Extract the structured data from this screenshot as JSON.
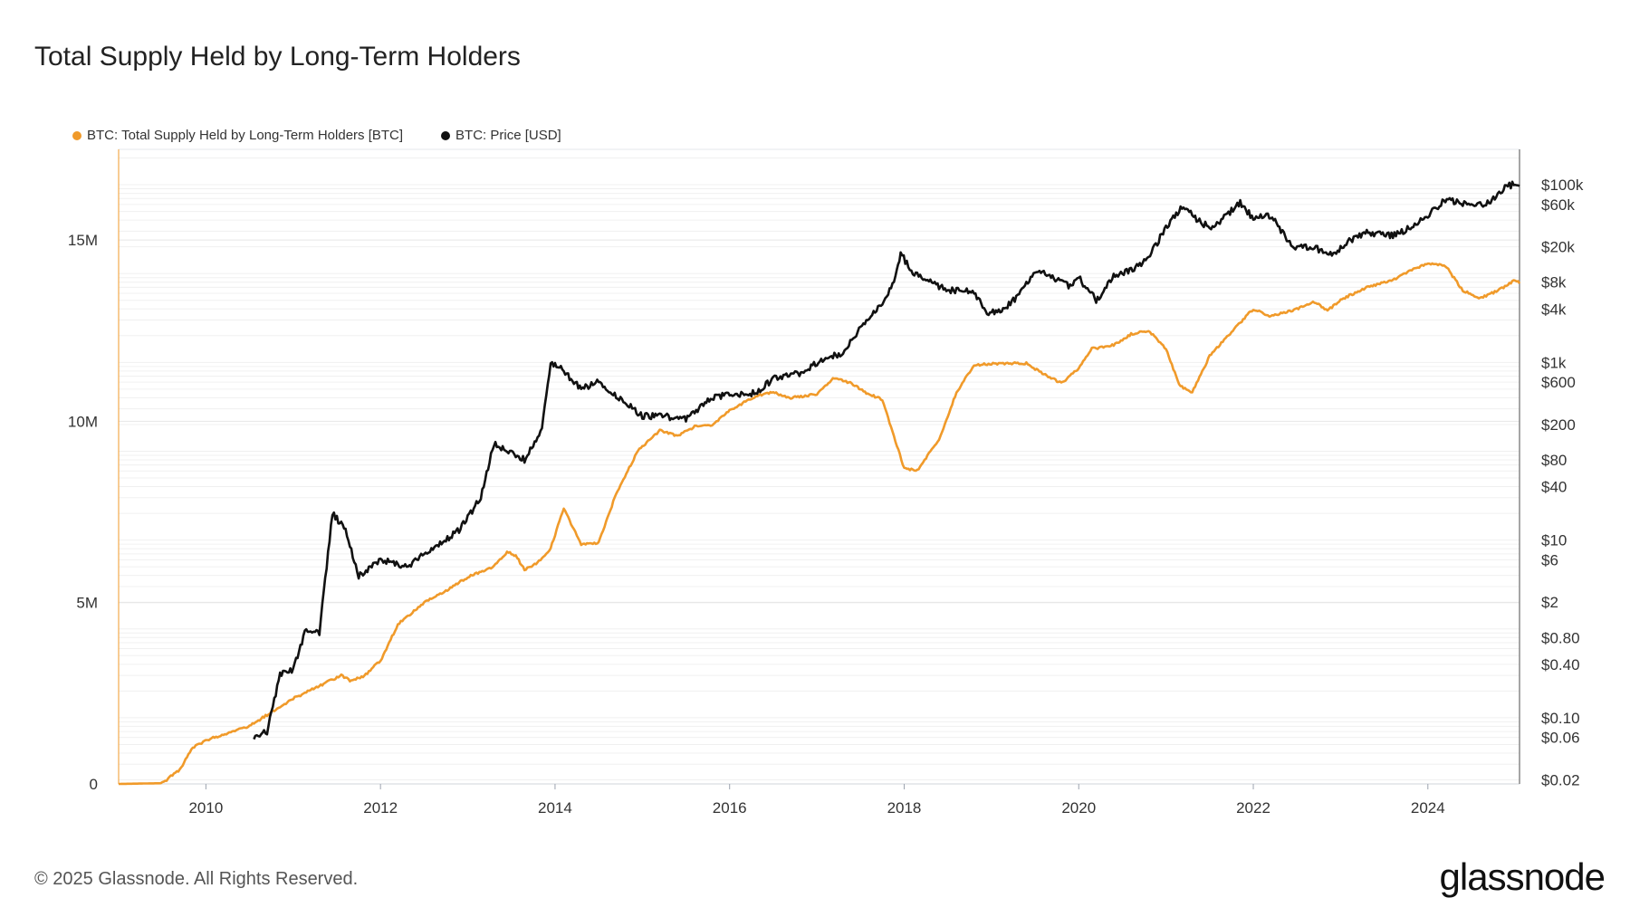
{
  "title": "Total Supply Held by Long-Term Holders",
  "legend": [
    {
      "label": "BTC: Total Supply Held by Long-Term Holders [BTC]",
      "color": "#f09a2a"
    },
    {
      "label": "BTC: Price [USD]",
      "color": "#111111"
    }
  ],
  "footer": "© 2025 Glassnode. All Rights Reserved.",
  "logo": "glassnode",
  "chart_data": {
    "type": "line",
    "x_range": [
      2009.0,
      2025.05
    ],
    "x_ticks": [
      "2010",
      "2012",
      "2014",
      "2016",
      "2018",
      "2020",
      "2022",
      "2024"
    ],
    "y_left": {
      "range": [
        0,
        17500000
      ],
      "ticks": [
        {
          "value": 0,
          "label": "0"
        },
        {
          "value": 5000000,
          "label": "5M"
        },
        {
          "value": 10000000,
          "label": "10M"
        },
        {
          "value": 15000000,
          "label": "15M"
        }
      ]
    },
    "y_right": {
      "scale": "log",
      "range": [
        0.018,
        250000
      ],
      "ticks": [
        {
          "value": 100000,
          "label": "$100k"
        },
        {
          "value": 60000,
          "label": "$60k"
        },
        {
          "value": 20000,
          "label": "$20k"
        },
        {
          "value": 8000,
          "label": "$8k"
        },
        {
          "value": 4000,
          "label": "$4k"
        },
        {
          "value": 1000,
          "label": "$1k"
        },
        {
          "value": 600,
          "label": "$600"
        },
        {
          "value": 200,
          "label": "$200"
        },
        {
          "value": 80,
          "label": "$80"
        },
        {
          "value": 40,
          "label": "$40"
        },
        {
          "value": 10,
          "label": "$10"
        },
        {
          "value": 6,
          "label": "$6"
        },
        {
          "value": 2,
          "label": "$2"
        },
        {
          "value": 0.8,
          "label": "$0.80"
        },
        {
          "value": 0.4,
          "label": "$0.40"
        },
        {
          "value": 0.1,
          "label": "$0.10"
        },
        {
          "value": 0.06,
          "label": "$0.06"
        },
        {
          "value": 0.02,
          "label": "$0.02"
        }
      ]
    },
    "series": [
      {
        "name": "BTC: Total Supply Held by Long-Term Holders [BTC]",
        "color": "#f09a2a",
        "axis": "left",
        "points": [
          [
            2009.0,
            0
          ],
          [
            2009.5,
            20000
          ],
          [
            2009.7,
            400000
          ],
          [
            2009.85,
            1000000
          ],
          [
            2010.0,
            1200000
          ],
          [
            2010.3,
            1450000
          ],
          [
            2010.5,
            1600000
          ],
          [
            2010.8,
            2050000
          ],
          [
            2011.0,
            2350000
          ],
          [
            2011.3,
            2700000
          ],
          [
            2011.55,
            3000000
          ],
          [
            2011.65,
            2850000
          ],
          [
            2011.8,
            2950000
          ],
          [
            2012.0,
            3400000
          ],
          [
            2012.2,
            4400000
          ],
          [
            2012.5,
            5000000
          ],
          [
            2012.8,
            5400000
          ],
          [
            2013.0,
            5700000
          ],
          [
            2013.3,
            6000000
          ],
          [
            2013.45,
            6400000
          ],
          [
            2013.55,
            6300000
          ],
          [
            2013.65,
            5900000
          ],
          [
            2013.8,
            6100000
          ],
          [
            2013.95,
            6500000
          ],
          [
            2014.1,
            7600000
          ],
          [
            2014.3,
            6600000
          ],
          [
            2014.5,
            6650000
          ],
          [
            2014.7,
            8000000
          ],
          [
            2014.95,
            9200000
          ],
          [
            2015.2,
            9750000
          ],
          [
            2015.4,
            9600000
          ],
          [
            2015.6,
            9850000
          ],
          [
            2015.8,
            9900000
          ],
          [
            2016.0,
            10300000
          ],
          [
            2016.3,
            10700000
          ],
          [
            2016.5,
            10800000
          ],
          [
            2016.7,
            10650000
          ],
          [
            2017.0,
            10750000
          ],
          [
            2017.2,
            11200000
          ],
          [
            2017.4,
            11050000
          ],
          [
            2017.55,
            10800000
          ],
          [
            2017.75,
            10600000
          ],
          [
            2018.0,
            8700000
          ],
          [
            2018.15,
            8650000
          ],
          [
            2018.4,
            9500000
          ],
          [
            2018.6,
            10800000
          ],
          [
            2018.8,
            11550000
          ],
          [
            2019.1,
            11600000
          ],
          [
            2019.4,
            11600000
          ],
          [
            2019.6,
            11300000
          ],
          [
            2019.8,
            11050000
          ],
          [
            2020.0,
            11450000
          ],
          [
            2020.15,
            12000000
          ],
          [
            2020.4,
            12100000
          ],
          [
            2020.6,
            12400000
          ],
          [
            2020.8,
            12500000
          ],
          [
            2021.0,
            12000000
          ],
          [
            2021.15,
            11000000
          ],
          [
            2021.3,
            10800000
          ],
          [
            2021.5,
            11800000
          ],
          [
            2021.8,
            12600000
          ],
          [
            2022.0,
            13100000
          ],
          [
            2022.2,
            12900000
          ],
          [
            2022.5,
            13100000
          ],
          [
            2022.7,
            13300000
          ],
          [
            2022.85,
            13050000
          ],
          [
            2023.0,
            13350000
          ],
          [
            2023.3,
            13700000
          ],
          [
            2023.6,
            13900000
          ],
          [
            2023.8,
            14150000
          ],
          [
            2024.0,
            14350000
          ],
          [
            2024.2,
            14300000
          ],
          [
            2024.4,
            13600000
          ],
          [
            2024.6,
            13400000
          ],
          [
            2024.8,
            13600000
          ],
          [
            2025.0,
            13900000
          ],
          [
            2025.05,
            13800000
          ]
        ]
      },
      {
        "name": "BTC: Price [USD]",
        "color": "#111111",
        "axis": "right",
        "points": [
          [
            2010.55,
            0.06
          ],
          [
            2010.7,
            0.07
          ],
          [
            2010.85,
            0.3
          ],
          [
            2011.0,
            0.35
          ],
          [
            2011.15,
            1.0
          ],
          [
            2011.3,
            0.9
          ],
          [
            2011.45,
            20
          ],
          [
            2011.6,
            13
          ],
          [
            2011.75,
            4
          ],
          [
            2012.0,
            6
          ],
          [
            2012.3,
            5
          ],
          [
            2012.6,
            8
          ],
          [
            2012.9,
            13
          ],
          [
            2013.15,
            30
          ],
          [
            2013.3,
            120
          ],
          [
            2013.45,
            100
          ],
          [
            2013.65,
            80
          ],
          [
            2013.85,
            180
          ],
          [
            2013.95,
            1000
          ],
          [
            2014.1,
            800
          ],
          [
            2014.3,
            500
          ],
          [
            2014.5,
            600
          ],
          [
            2014.8,
            350
          ],
          [
            2015.0,
            250
          ],
          [
            2015.2,
            250
          ],
          [
            2015.5,
            230
          ],
          [
            2015.8,
            400
          ],
          [
            2016.0,
            430
          ],
          [
            2016.3,
            450
          ],
          [
            2016.5,
            650
          ],
          [
            2016.8,
            750
          ],
          [
            2017.0,
            1000
          ],
          [
            2017.3,
            1300
          ],
          [
            2017.5,
            2500
          ],
          [
            2017.75,
            4500
          ],
          [
            2017.9,
            9000
          ],
          [
            2017.96,
            17000
          ],
          [
            2018.1,
            10000
          ],
          [
            2018.3,
            8000
          ],
          [
            2018.5,
            6500
          ],
          [
            2018.8,
            6300
          ],
          [
            2018.95,
            3600
          ],
          [
            2019.1,
            3700
          ],
          [
            2019.3,
            5500
          ],
          [
            2019.5,
            11000
          ],
          [
            2019.7,
            9000
          ],
          [
            2019.9,
            7200
          ],
          [
            2020.0,
            9000
          ],
          [
            2020.2,
            5000
          ],
          [
            2020.4,
            9200
          ],
          [
            2020.6,
            11000
          ],
          [
            2020.8,
            15000
          ],
          [
            2021.0,
            33000
          ],
          [
            2021.2,
            58000
          ],
          [
            2021.4,
            37000
          ],
          [
            2021.55,
            33000
          ],
          [
            2021.85,
            63000
          ],
          [
            2022.0,
            42000
          ],
          [
            2022.2,
            45000
          ],
          [
            2022.45,
            20000
          ],
          [
            2022.7,
            19500
          ],
          [
            2022.9,
            16500
          ],
          [
            2023.1,
            23000
          ],
          [
            2023.3,
            29000
          ],
          [
            2023.6,
            26500
          ],
          [
            2023.85,
            35000
          ],
          [
            2024.0,
            45000
          ],
          [
            2024.2,
            68000
          ],
          [
            2024.5,
            58000
          ],
          [
            2024.7,
            63000
          ],
          [
            2024.9,
            95000
          ],
          [
            2025.0,
            102000
          ],
          [
            2025.05,
            97000
          ]
        ]
      }
    ]
  }
}
